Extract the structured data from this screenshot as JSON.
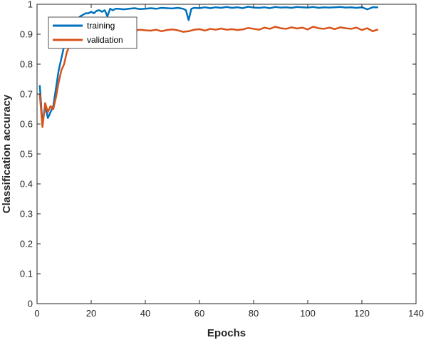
{
  "chart_data": {
    "type": "line",
    "xlabel": "Epochs",
    "ylabel": "Classification accuracy",
    "xlim": [
      0,
      140
    ],
    "ylim": [
      0,
      1
    ],
    "xticks": [
      0,
      20,
      40,
      60,
      80,
      100,
      120,
      140
    ],
    "xtick_labels": [
      "0",
      "20",
      "40",
      "60",
      "80",
      "100",
      "120",
      "140"
    ],
    "yticks": [
      0,
      0.1,
      0.2,
      0.3,
      0.4,
      0.5,
      0.6,
      0.7,
      0.8,
      0.9,
      1
    ],
    "ytick_labels": [
      "0",
      "0.1",
      "0.2",
      "0.3",
      "0.4",
      "0.5",
      "0.6",
      "0.7",
      "0.8",
      "0.9",
      "1"
    ],
    "grid": false,
    "legend_position": "top-left",
    "series": [
      {
        "name": "training",
        "color": "#0072BD",
        "x": [
          1,
          2,
          3,
          4,
          5,
          6,
          7,
          8,
          9,
          10,
          11,
          12,
          13,
          14,
          15,
          16,
          17,
          18,
          19,
          20,
          21,
          22,
          23,
          24,
          25,
          26,
          27,
          28,
          29,
          30,
          32,
          34,
          36,
          38,
          40,
          42,
          44,
          46,
          48,
          50,
          52,
          54,
          55,
          56,
          57,
          58,
          60,
          62,
          64,
          66,
          68,
          70,
          72,
          74,
          76,
          78,
          80,
          82,
          84,
          86,
          88,
          90,
          92,
          94,
          96,
          98,
          100,
          102,
          104,
          106,
          108,
          110,
          112,
          114,
          116,
          118,
          120,
          122,
          124,
          126
        ],
        "y": [
          0.73,
          0.6,
          0.66,
          0.62,
          0.64,
          0.66,
          0.72,
          0.78,
          0.82,
          0.86,
          0.9,
          0.92,
          0.94,
          0.93,
          0.95,
          0.96,
          0.965,
          0.97,
          0.97,
          0.975,
          0.97,
          0.978,
          0.98,
          0.975,
          0.98,
          0.96,
          0.985,
          0.98,
          0.985,
          0.985,
          0.983,
          0.985,
          0.987,
          0.984,
          0.985,
          0.987,
          0.985,
          0.988,
          0.987,
          0.986,
          0.988,
          0.985,
          0.98,
          0.947,
          0.985,
          0.988,
          0.987,
          0.99,
          0.987,
          0.99,
          0.988,
          0.991,
          0.988,
          0.99,
          0.987,
          0.992,
          0.989,
          0.988,
          0.99,
          0.987,
          0.991,
          0.989,
          0.99,
          0.988,
          0.991,
          0.99,
          0.989,
          0.991,
          0.988,
          0.99,
          0.989,
          0.99,
          0.991,
          0.989,
          0.99,
          0.988,
          0.99,
          0.983,
          0.99,
          0.99
        ]
      },
      {
        "name": "validation",
        "color": "#D95319",
        "x": [
          1,
          2,
          3,
          4,
          5,
          6,
          7,
          8,
          9,
          10,
          11,
          12,
          13,
          14,
          15,
          16,
          17,
          18,
          19,
          20,
          21,
          22,
          23,
          24,
          25,
          26,
          27,
          28,
          30,
          32,
          34,
          36,
          38,
          40,
          42,
          44,
          46,
          48,
          50,
          52,
          54,
          56,
          58,
          60,
          62,
          64,
          66,
          68,
          70,
          72,
          74,
          76,
          78,
          80,
          82,
          84,
          86,
          88,
          90,
          92,
          94,
          96,
          98,
          100,
          102,
          104,
          106,
          108,
          110,
          112,
          114,
          116,
          118,
          120,
          122,
          124,
          126
        ],
        "y": [
          0.7,
          0.59,
          0.67,
          0.64,
          0.66,
          0.65,
          0.69,
          0.74,
          0.78,
          0.8,
          0.84,
          0.86,
          0.87,
          0.88,
          0.89,
          0.9,
          0.895,
          0.9,
          0.91,
          0.905,
          0.912,
          0.905,
          0.915,
          0.91,
          0.908,
          0.918,
          0.912,
          0.915,
          0.916,
          0.91,
          0.914,
          0.912,
          0.915,
          0.913,
          0.912,
          0.915,
          0.91,
          0.914,
          0.916,
          0.913,
          0.908,
          0.91,
          0.915,
          0.917,
          0.912,
          0.918,
          0.915,
          0.919,
          0.915,
          0.917,
          0.914,
          0.916,
          0.921,
          0.918,
          0.915,
          0.922,
          0.918,
          0.925,
          0.92,
          0.918,
          0.923,
          0.919,
          0.922,
          0.916,
          0.925,
          0.92,
          0.918,
          0.922,
          0.917,
          0.923,
          0.92,
          0.918,
          0.922,
          0.914,
          0.92,
          0.91,
          0.916
        ]
      }
    ]
  }
}
